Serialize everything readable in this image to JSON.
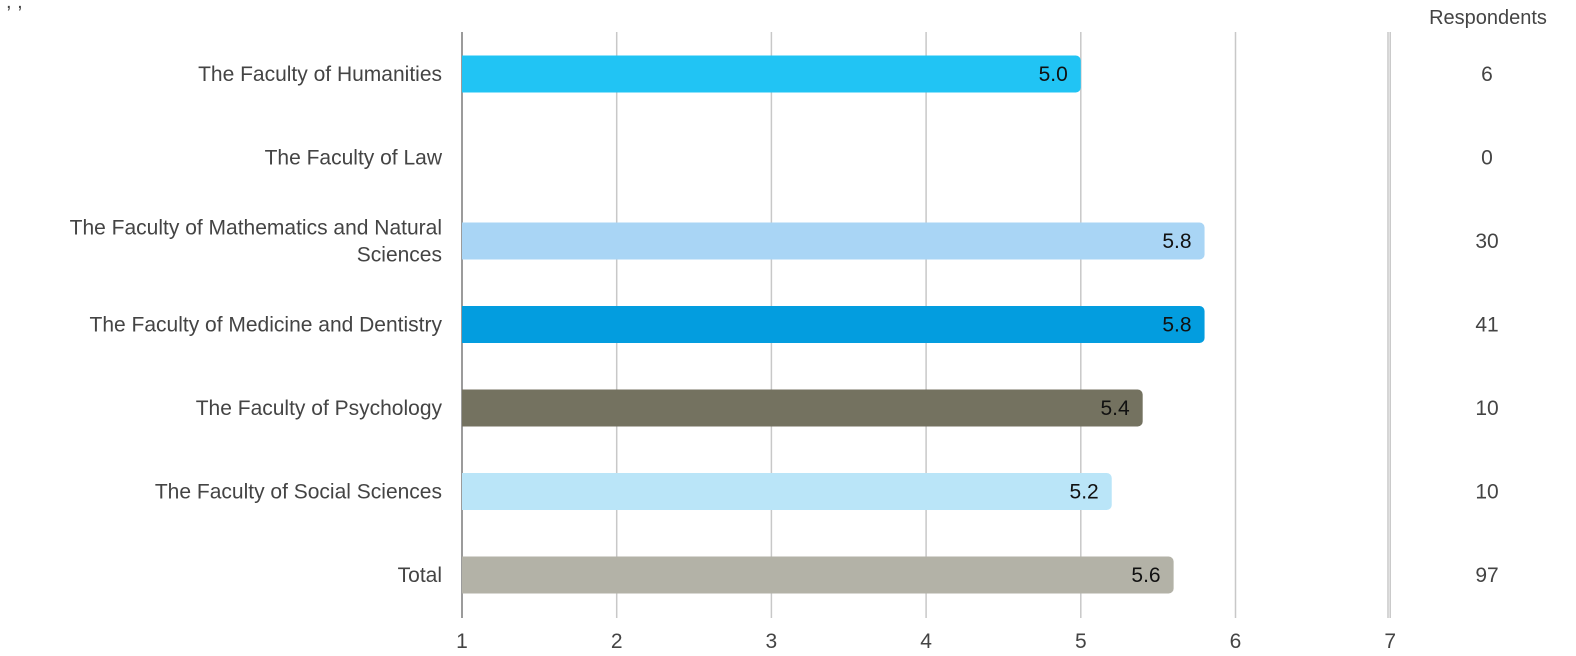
{
  "chart_data": {
    "type": "bar",
    "orientation": "horizontal",
    "categories": [
      "The Faculty of Humanities",
      "The Faculty of Law",
      "The Faculty of Mathematics and Natural Sciences",
      "The Faculty of Medicine and Dentistry",
      "The Faculty of Psychology",
      "The Faculty of Social Sciences",
      "Total"
    ],
    "category_lines": [
      [
        "The Faculty of Humanities"
      ],
      [
        "The Faculty of Law"
      ],
      [
        "The Faculty of Mathematics and Natural",
        "Sciences"
      ],
      [
        "The Faculty of Medicine and Dentistry"
      ],
      [
        "The Faculty of Psychology"
      ],
      [
        "The Faculty of Social Sciences"
      ],
      [
        "Total"
      ]
    ],
    "values": [
      5.0,
      null,
      5.8,
      5.8,
      5.4,
      5.2,
      5.6
    ],
    "value_labels": [
      "5.0",
      "",
      "5.8",
      "5.8",
      "5.4",
      "5.2",
      "5.6"
    ],
    "bar_colors": [
      "#21c4f4",
      "#21c4f4",
      "#a9d5f5",
      "#039ddf",
      "#747260",
      "#bae5f8",
      "#b3b2a7"
    ],
    "xlim": [
      1,
      7
    ],
    "x_ticks": [
      1,
      2,
      3,
      4,
      5,
      6,
      7
    ],
    "x_tick_labels": [
      "1",
      "2",
      "3",
      "4",
      "5",
      "6",
      "7"
    ],
    "grid": true,
    "respondents_header": "Respondents",
    "respondents": [
      "6",
      "0",
      "30",
      "41",
      "10",
      "10",
      "97"
    ],
    "top_fragment": ", ,"
  }
}
